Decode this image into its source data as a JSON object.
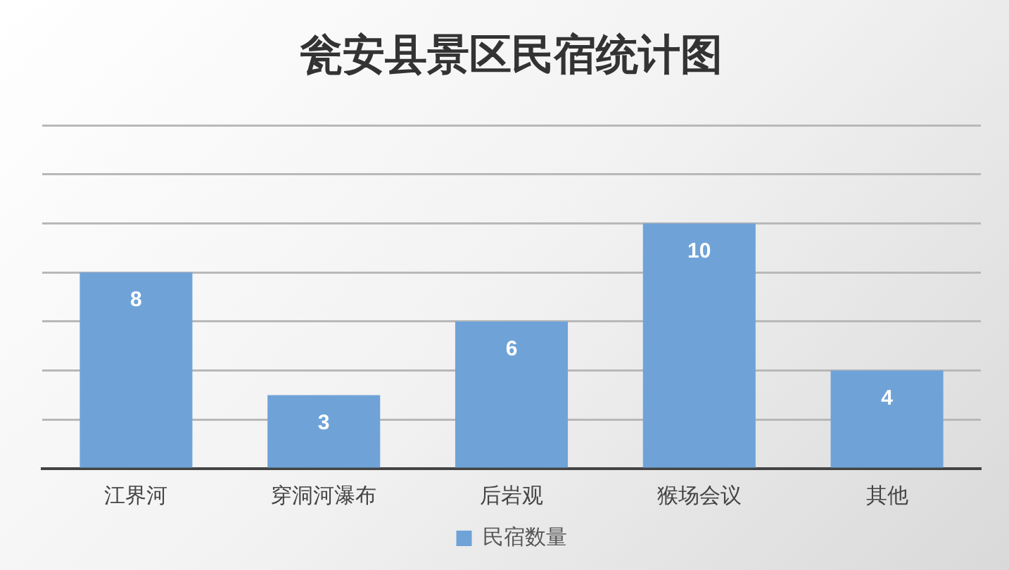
{
  "chart_data": {
    "type": "bar",
    "title": "瓮安县景区民宿统计图",
    "categories": [
      "江界河",
      "穿洞河瀑布",
      "后岩观",
      "猴场会议",
      "其他"
    ],
    "series": [
      {
        "name": "民宿数量",
        "color": "#6fa3d8",
        "values": [
          8,
          3,
          6,
          10,
          4
        ]
      }
    ],
    "ylim": [
      0,
      14
    ],
    "yticks": [
      {
        "value": 0,
        "label": null
      },
      {
        "value": 2,
        "label": null
      },
      {
        "value": 4,
        "label": null
      },
      {
        "value": 6,
        "label": null
      },
      {
        "value": 8,
        "label": null
      },
      {
        "value": 10,
        "label": null
      },
      {
        "value": 12,
        "label": null
      },
      {
        "value": 14,
        "label": null
      }
    ],
    "grid": "y",
    "legend": "bottom",
    "data_labels": true,
    "tick_labels": "x"
  }
}
